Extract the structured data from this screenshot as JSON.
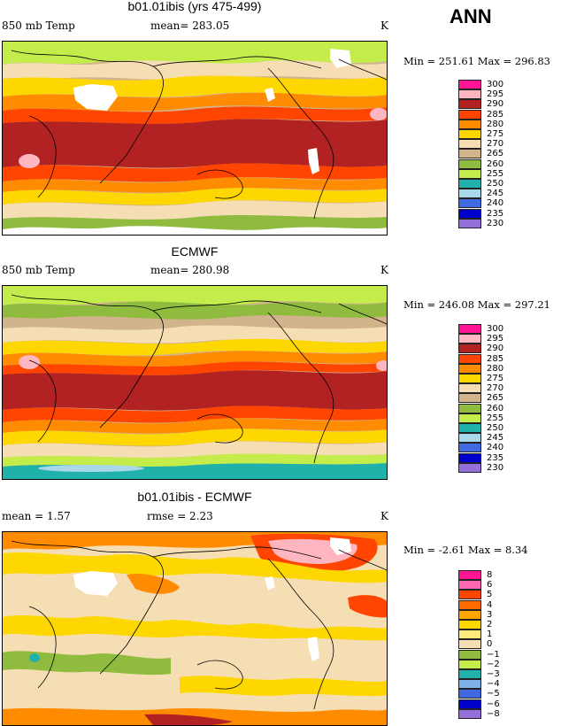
{
  "season": "ANN",
  "panels": [
    {
      "title": "b01.01ibis (yrs 475-499)",
      "left_label": "850 mb Temp",
      "mean_label": "mean= 283.05",
      "unit": "K",
      "minmax": "Min = 251.61 Max = 296.83",
      "colorbar": {
        "labels": [
          "300",
          "295",
          "290",
          "285",
          "280",
          "275",
          "270",
          "265",
          "260",
          "255",
          "250",
          "245",
          "240",
          "235",
          "230"
        ],
        "colors": [
          "#ff1493",
          "#ffb6c1",
          "#b22222",
          "#ff4500",
          "#ff8c00",
          "#ffd700",
          "#f5deb3",
          "#d2b48c",
          "#8fbc3f",
          "#c4ec4a",
          "#20b2aa",
          "#a8d8ea",
          "#4169e1",
          "#0000cd",
          "#9370db"
        ]
      }
    },
    {
      "title": "ECMWF",
      "left_label": "850 mb Temp",
      "mean_label": "mean= 280.98",
      "unit": "K",
      "minmax": "Min = 246.08 Max = 297.21",
      "colorbar": {
        "labels": [
          "300",
          "295",
          "290",
          "285",
          "280",
          "275",
          "270",
          "265",
          "260",
          "255",
          "250",
          "245",
          "240",
          "235",
          "230"
        ],
        "colors": [
          "#ff1493",
          "#ffb6c1",
          "#b22222",
          "#ff4500",
          "#ff8c00",
          "#ffd700",
          "#f5deb3",
          "#d2b48c",
          "#8fbc3f",
          "#c4ec4a",
          "#20b2aa",
          "#a8d8ea",
          "#4169e1",
          "#0000cd",
          "#9370db"
        ]
      }
    },
    {
      "title": "b01.01ibis - ECMWF",
      "left_label": "mean =   1.57",
      "mean_label": "rmse =   2.23",
      "unit": "K",
      "minmax": "Min =  -2.61 Max =   8.34",
      "colorbar": {
        "labels": [
          "8",
          "6",
          "5",
          "4",
          "3",
          "2",
          "1",
          "0",
          "−1",
          "−2",
          "−3",
          "−4",
          "−5",
          "−6",
          "−8"
        ],
        "colors": [
          "#ff1493",
          "#ff69b4",
          "#ff4500",
          "#ff6a00",
          "#ffa500",
          "#ffd700",
          "#ffe97a",
          "#f5deb3",
          "#8fbc3f",
          "#c4ec4a",
          "#20b2aa",
          "#7fb2e6",
          "#4169e1",
          "#0000cd",
          "#9370db"
        ]
      }
    }
  ]
}
